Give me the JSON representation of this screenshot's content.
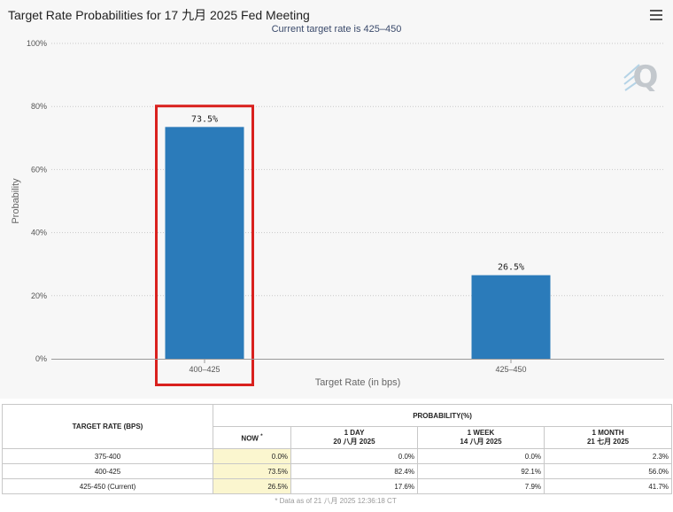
{
  "header": {
    "title": "Target Rate Probabilities for 17 九月 2025 Fed Meeting",
    "subtitle": "Current target rate is 425–450",
    "menu_icon": "hamburger-menu-icon",
    "watermark_icon": "q-logo-icon"
  },
  "chart_data": {
    "type": "bar",
    "categories": [
      "400–425",
      "425–450"
    ],
    "values": [
      73.5,
      26.5
    ],
    "value_labels": [
      "73.5%",
      "26.5%"
    ],
    "xlabel": "Target Rate (in bps)",
    "ylabel": "Probability",
    "ylim": [
      0,
      100
    ],
    "yticks": [
      "0%",
      "20%",
      "40%",
      "60%",
      "80%",
      "100%"
    ],
    "ytick_values": [
      0,
      20,
      40,
      60,
      80,
      100
    ],
    "grid": true,
    "bar_color": "#2b7bba",
    "highlight_category": "400–425",
    "highlight_color": "#d9211e"
  },
  "table": {
    "col_target_rate": "TARGET RATE (BPS)",
    "col_probability": "PROBABILITY(%)",
    "col_now": "NOW",
    "col_now_mark": "*",
    "col_1day": "1 DAY",
    "col_1day_date": "20 八月 2025",
    "col_1week": "1 WEEK",
    "col_1week_date": "14 八月 2025",
    "col_1month": "1 MONTH",
    "col_1month_date": "21 七月 2025",
    "rows": [
      {
        "rate": "375-400",
        "now": "0.0%",
        "day": "0.0%",
        "week": "0.0%",
        "month": "2.3%"
      },
      {
        "rate": "400-425",
        "now": "73.5%",
        "day": "82.4%",
        "week": "92.1%",
        "month": "56.0%"
      },
      {
        "rate": "425-450 (Current)",
        "now": "26.5%",
        "day": "17.6%",
        "week": "7.9%",
        "month": "41.7%"
      }
    ],
    "footnote": "* Data as of 21 八月 2025 12:36:18 CT"
  }
}
